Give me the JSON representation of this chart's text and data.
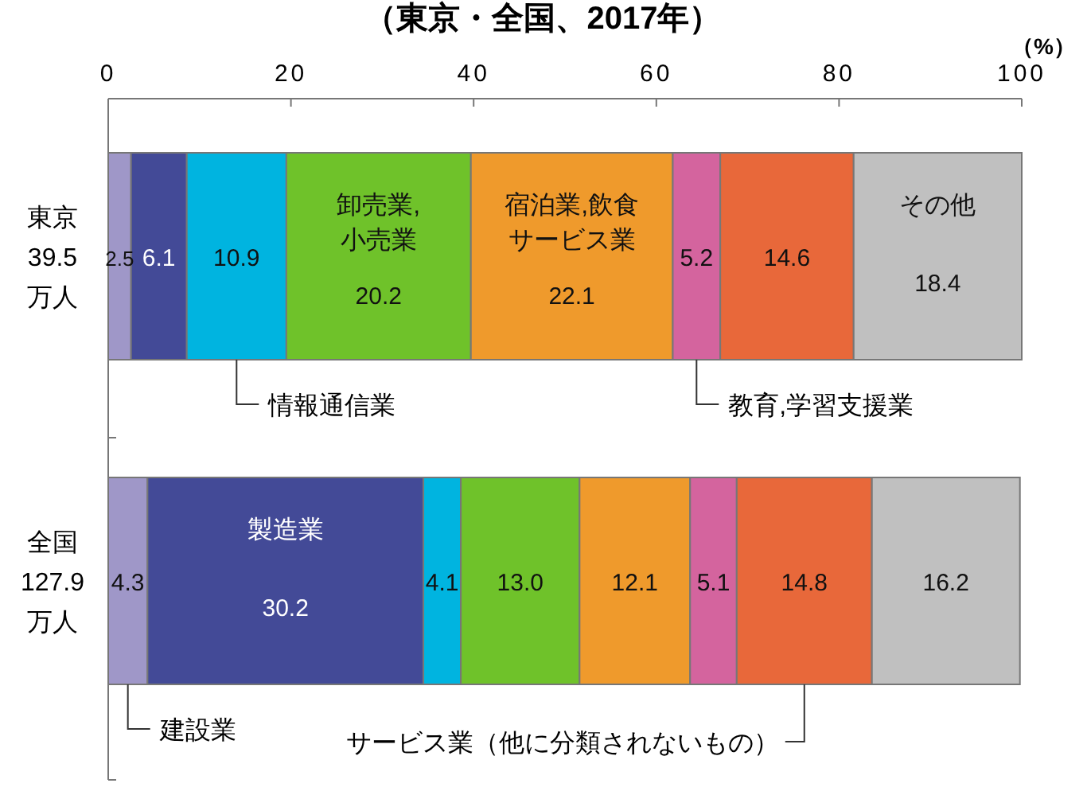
{
  "chart_data": {
    "type": "bar",
    "orientation": "horizontal",
    "stacked": true,
    "data_labels": true,
    "title": "（東京・全国、2017年）",
    "annotations": [
      "（%）"
    ],
    "categories": [
      "東京\n39.5\n万人",
      "全国\n127.9\n万人"
    ],
    "xlim": [
      0,
      100
    ],
    "xticks": [
      0,
      20,
      40,
      60,
      80,
      100
    ],
    "grid": false,
    "series": [
      {
        "name": "建設業",
        "color": "#9f97c8",
        "values": [
          2.5,
          4.3
        ],
        "value_labels": [
          "2.5",
          "4.3"
        ]
      },
      {
        "name": "製造業",
        "color": "#434a97",
        "values": [
          6.1,
          30.2
        ],
        "value_labels": [
          "6.1",
          "30.2"
        ]
      },
      {
        "name": "情報通信業",
        "color": "#00b4e0",
        "values": [
          10.9,
          4.1
        ],
        "value_labels": [
          "10.9",
          "4.1"
        ]
      },
      {
        "name": "卸売業,小売業",
        "color": "#6fc22a",
        "values": [
          20.2,
          13.0
        ],
        "value_labels": [
          "20.2",
          "13.0"
        ]
      },
      {
        "name": "宿泊業,飲食サービス業",
        "color": "#ef9a2c",
        "values": [
          22.1,
          12.1
        ],
        "value_labels": [
          "22.1",
          "12.1"
        ]
      },
      {
        "name": "教育,学習支援業",
        "color": "#d4649e",
        "values": [
          5.2,
          5.1
        ],
        "value_labels": [
          "5.2",
          "5.1"
        ]
      },
      {
        "name": "サービス業（他に分類されないもの）",
        "color": "#e8683a",
        "values": [
          14.6,
          14.8
        ],
        "value_labels": [
          "14.6",
          "14.8"
        ]
      },
      {
        "name": "その他",
        "color": "#c0c0c0",
        "values": [
          18.4,
          16.2
        ],
        "value_labels": [
          "18.4",
          "16.2"
        ]
      }
    ]
  }
}
